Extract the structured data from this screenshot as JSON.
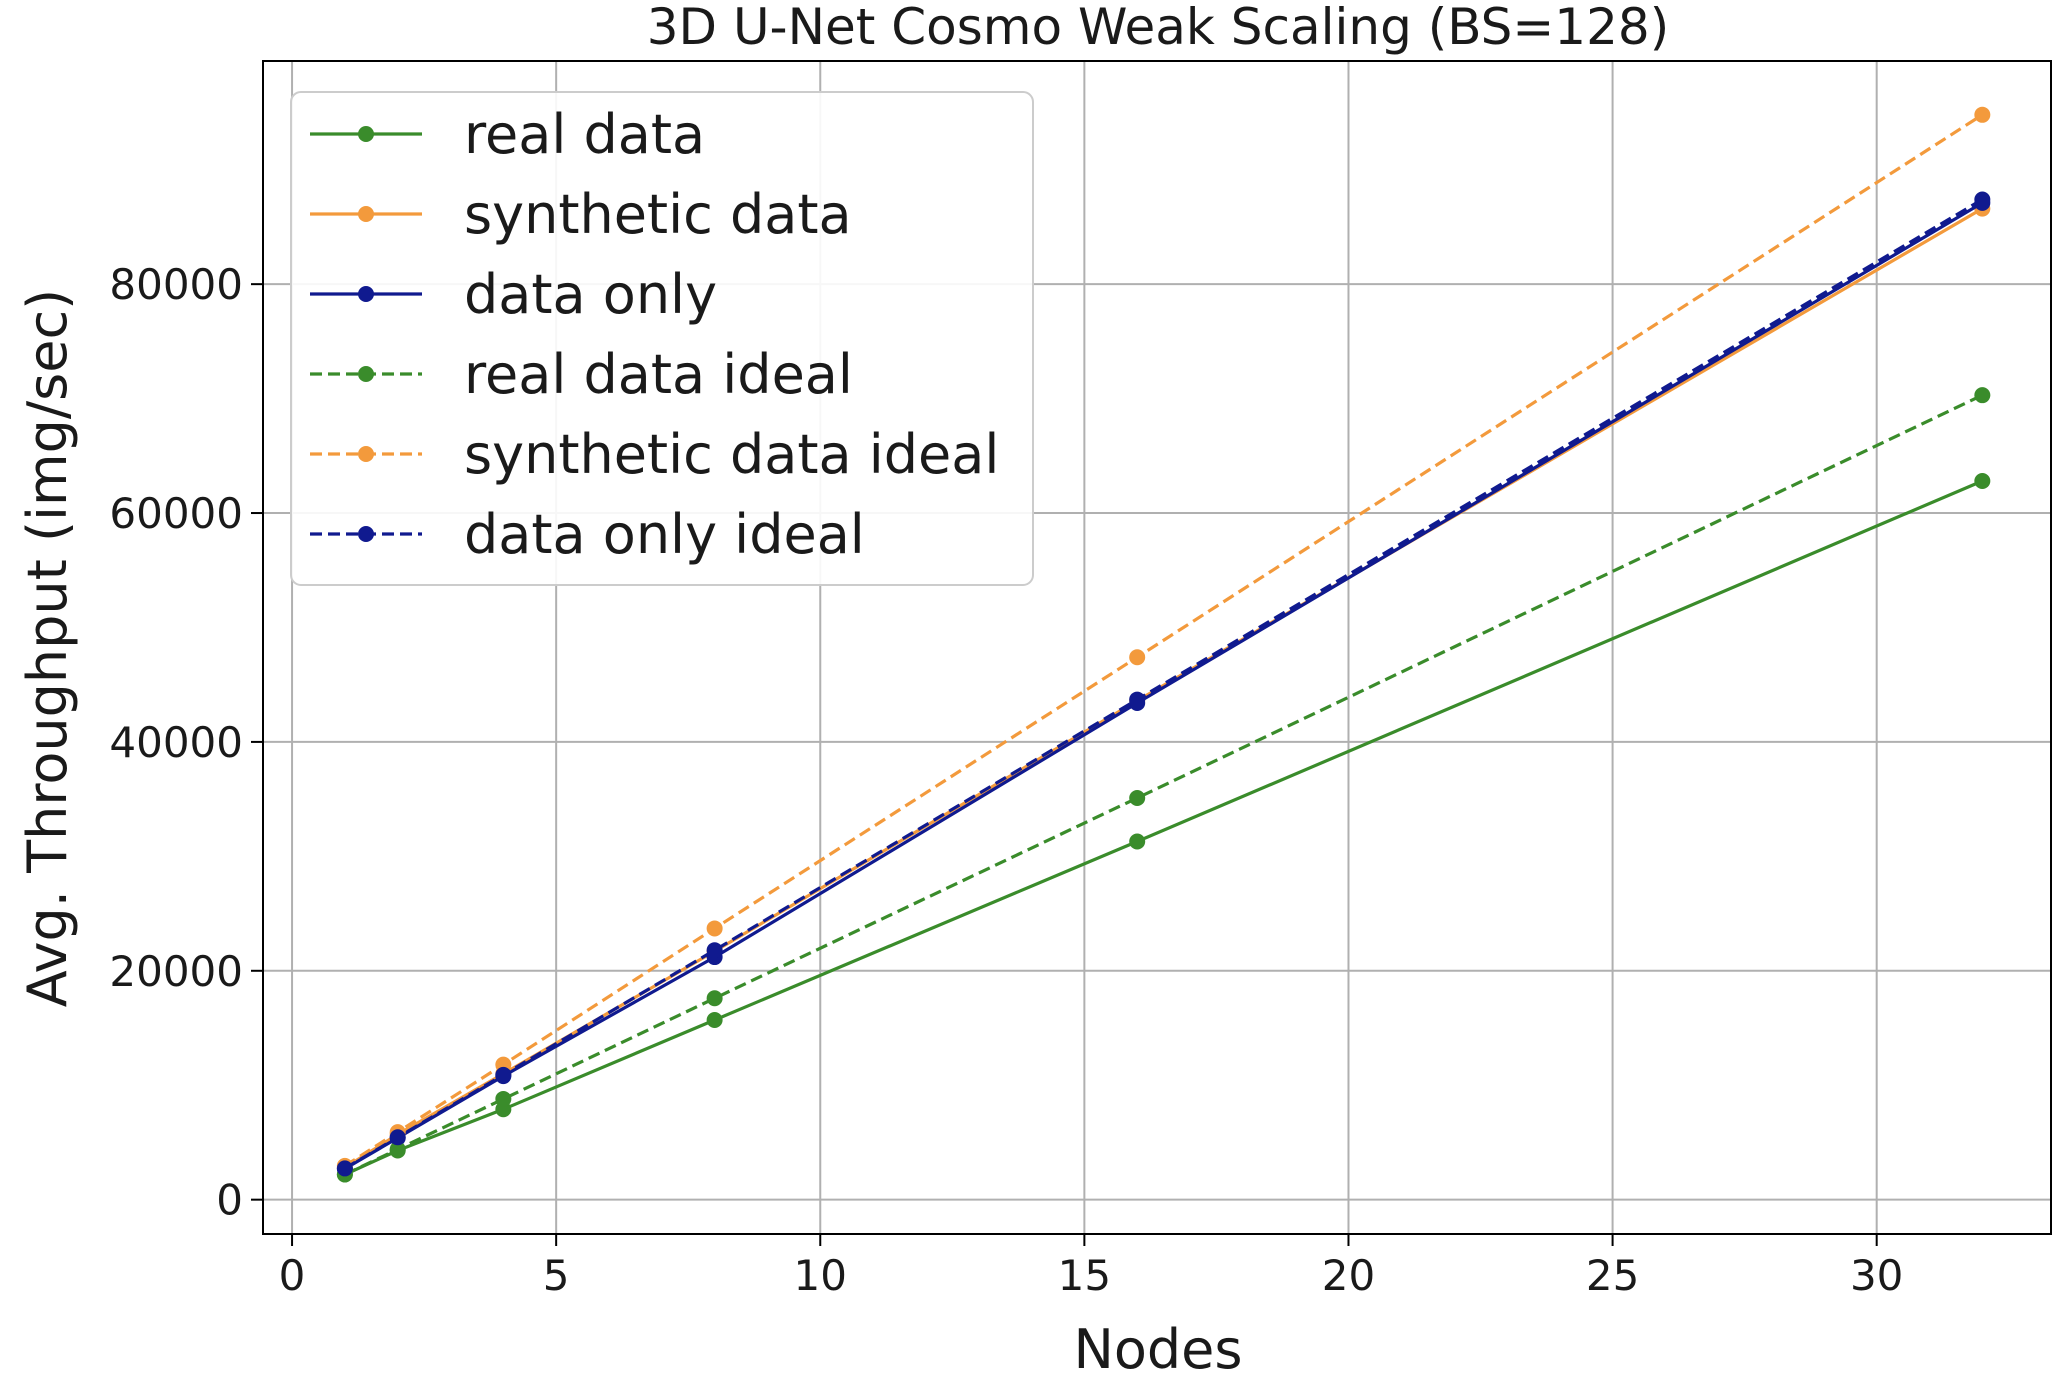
{
  "chart_data": {
    "type": "line",
    "title": "3D U-Net Cosmo Weak Scaling (BS=128)",
    "xlabel": "Nodes",
    "ylabel": "Avg. Throughput (img/sec)",
    "xlim": [
      -0.55,
      33.3
    ],
    "ylim": [
      -3000,
      99500
    ],
    "xticks": [
      0,
      5,
      10,
      15,
      20,
      25,
      30
    ],
    "yticks": [
      0,
      20000,
      40000,
      60000,
      80000
    ],
    "grid": true,
    "legend_position": "top-left",
    "x": [
      1,
      2,
      4,
      8,
      16,
      32
    ],
    "series": [
      {
        "name": "real data",
        "color": "#3a8c2b",
        "dashed": false,
        "values": [
          2200,
          4300,
          7900,
          15700,
          31300,
          62800
        ]
      },
      {
        "name": "synthetic data",
        "color": "#f39a3c",
        "dashed": false,
        "values": [
          2800,
          5700,
          11000,
          21700,
          43600,
          86600
        ]
      },
      {
        "name": "data only",
        "color": "#101a8f",
        "dashed": false,
        "values": [
          2700,
          5400,
          10800,
          21200,
          43400,
          87100
        ]
      },
      {
        "name": "real data ideal",
        "color": "#3a8c2b",
        "dashed": true,
        "values": [
          2200,
          4400,
          8800,
          17600,
          35100,
          70300
        ]
      },
      {
        "name": "synthetic data ideal",
        "color": "#f39a3c",
        "dashed": true,
        "values": [
          2950,
          5900,
          11800,
          23700,
          47400,
          94800
        ]
      },
      {
        "name": "data only ideal",
        "color": "#101a8f",
        "dashed": true,
        "values": [
          2730,
          5450,
          10900,
          21800,
          43700,
          87400
        ]
      }
    ]
  }
}
